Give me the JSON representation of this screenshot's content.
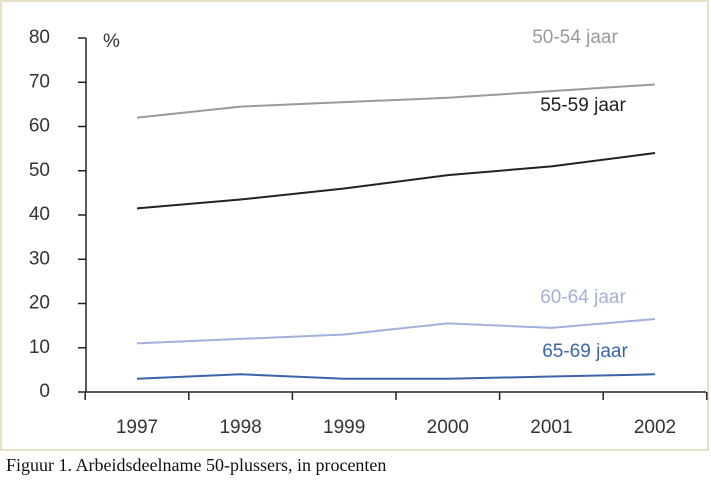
{
  "chart_data": {
    "type": "line",
    "caption": "Figuur 1. Arbeidsdeelname 50-plussers, in procenten",
    "y_label": "%",
    "categories": [
      "1997",
      "1998",
      "1999",
      "2000",
      "2001",
      "2002"
    ],
    "series": [
      {
        "name": "50-54 jaar",
        "color": "#9a9a9a",
        "values": [
          62,
          64.5,
          65.5,
          66.5,
          68,
          69.5
        ]
      },
      {
        "name": "55-59 jaar",
        "color": "#222222",
        "values": [
          41.5,
          43.5,
          46,
          49,
          51,
          54
        ]
      },
      {
        "name": "60-64 jaar",
        "color": "#a3b0d9",
        "values": [
          11,
          12,
          13,
          15.5,
          14.5,
          16.5
        ]
      },
      {
        "name": "65-69 jaar",
        "color": "#3c64a8",
        "values": [
          3,
          4,
          3,
          3,
          3.5,
          4
        ]
      }
    ],
    "ylim": [
      0,
      80
    ],
    "yticks": [
      0,
      10,
      20,
      30,
      40,
      50,
      60,
      70,
      80
    ]
  }
}
